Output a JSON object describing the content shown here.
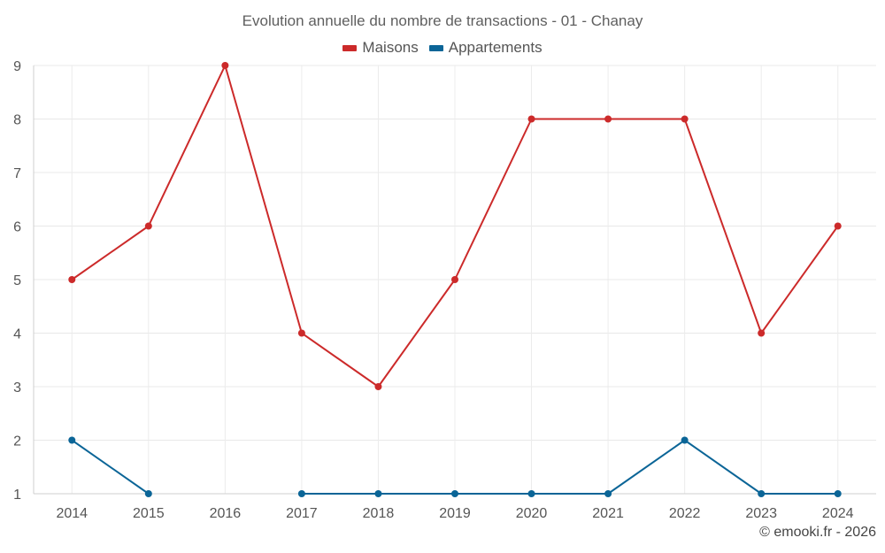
{
  "chart_data": {
    "type": "line",
    "title": "Evolution annuelle du nombre de transactions - 01 - Chanay",
    "categories": [
      "2014",
      "2015",
      "2016",
      "2017",
      "2018",
      "2019",
      "2020",
      "2021",
      "2022",
      "2023",
      "2024"
    ],
    "series": [
      {
        "name": "Maisons",
        "color": "#cc2a2a",
        "values": [
          5,
          6,
          9,
          4,
          3,
          5,
          8,
          8,
          8,
          4,
          6
        ]
      },
      {
        "name": "Appartements",
        "color": "#0b6597",
        "values": [
          2,
          1,
          null,
          1,
          1,
          1,
          1,
          1,
          2,
          1,
          1
        ]
      }
    ],
    "ylim": [
      1,
      9
    ],
    "yticks": [
      1,
      2,
      3,
      4,
      5,
      6,
      7,
      8,
      9
    ],
    "grid": true,
    "legend_position": "top-center"
  },
  "credit": "© emooki.fr - 2026"
}
